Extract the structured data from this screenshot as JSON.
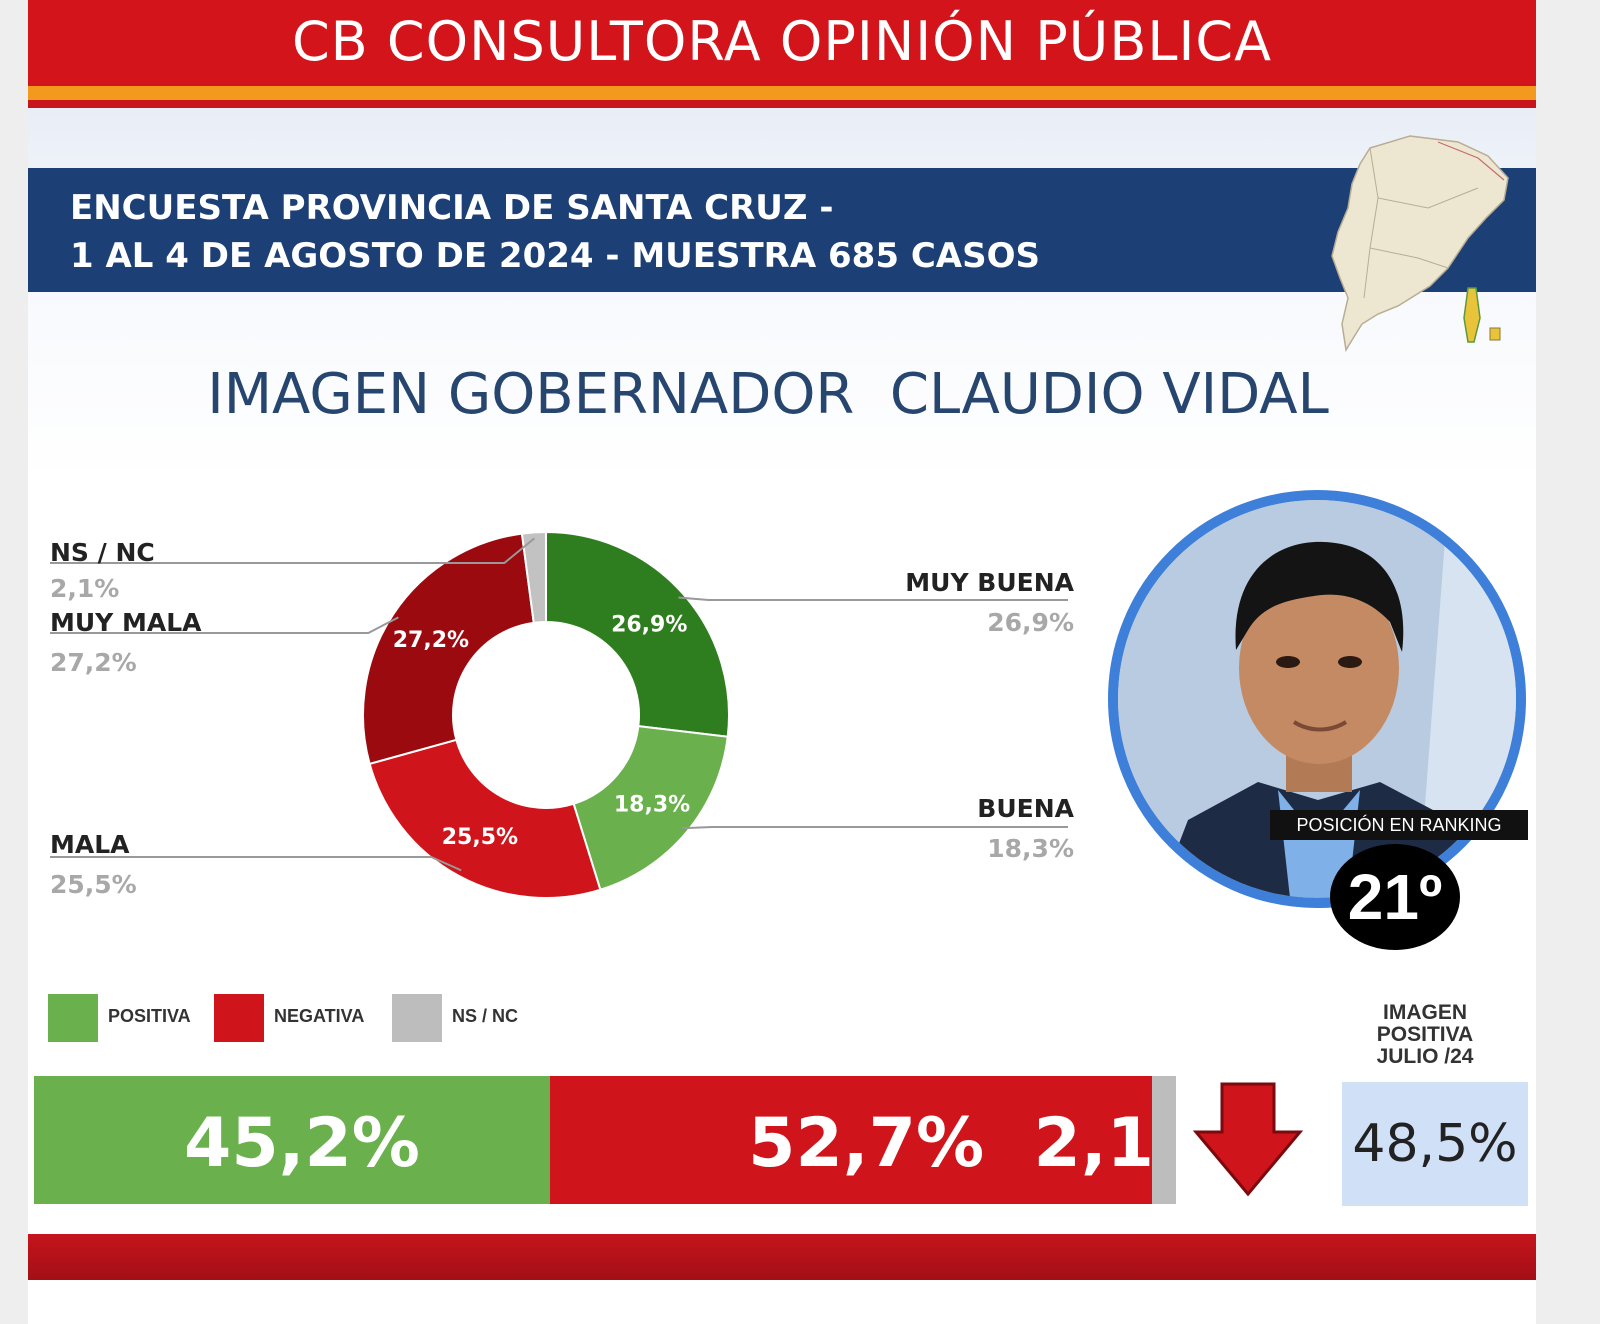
{
  "header": {
    "brand": "CB CONSULTORA OPINIÓN PÚBLICA",
    "survey_line1": "ENCUESTA PROVINCIA DE SANTA CRUZ -",
    "survey_line2": "1 AL 4 DE AGOSTO DE 2024 - MUESTRA 685 CASOS"
  },
  "title": "IMAGEN GOBERNADOR  CLAUDIO VIDAL",
  "chart_data": [
    {
      "type": "pie",
      "variant": "donut",
      "slices": [
        {
          "label": "MUY BUENA",
          "value": 26.9,
          "display": "26,9%",
          "color": "#2e7d1e"
        },
        {
          "label": "BUENA",
          "value": 18.3,
          "display": "18,3%",
          "color": "#6ab04c"
        },
        {
          "label": "MALA",
          "value": 25.5,
          "display": "25,5%",
          "color": "#d0141b"
        },
        {
          "label": "MUY MALA",
          "value": 27.2,
          "display": "27,2%",
          "color": "#9b0a0f"
        },
        {
          "label": "NS / NC",
          "value": 2.1,
          "display": "2,1%",
          "color": "#c2c2c2"
        }
      ]
    },
    {
      "type": "bar",
      "orientation": "horizontal-stacked",
      "legend": [
        "POSITIVA",
        "NEGATIVA",
        "NS / NC"
      ],
      "series": [
        {
          "name": "POSITIVA",
          "value": 45.2,
          "display": "45,2%",
          "color": "#6ab04c"
        },
        {
          "name": "NEGATIVA",
          "value": 52.7,
          "display": "52,7%",
          "color": "#d0141b"
        },
        {
          "name": "NS / NC",
          "value": 2.1,
          "display": "2,1",
          "color": "#bdbdbd"
        }
      ]
    }
  ],
  "ranking": {
    "label": "POSICIÓN EN RANKING",
    "value": "21º"
  },
  "previous": {
    "title": "IMAGEN POSITIVA JULIO /24",
    "value": "48,5%",
    "trend_icon": "arrow-down-icon",
    "trend_color": "#d0141b"
  }
}
